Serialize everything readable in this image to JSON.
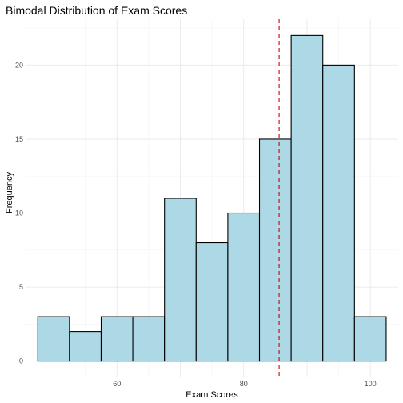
{
  "chart_data": {
    "type": "bar",
    "title": "Bimodal Distribution of Exam Scores",
    "xlabel": "Exam Scores",
    "ylabel": "Frequency",
    "bin_width": 5,
    "bins": [
      {
        "start": 47.5,
        "end": 52.5,
        "count": 3
      },
      {
        "start": 52.5,
        "end": 57.5,
        "count": 2
      },
      {
        "start": 57.5,
        "end": 62.5,
        "count": 3
      },
      {
        "start": 62.5,
        "end": 67.5,
        "count": 3
      },
      {
        "start": 67.5,
        "end": 72.5,
        "count": 11
      },
      {
        "start": 72.5,
        "end": 77.5,
        "count": 8
      },
      {
        "start": 77.5,
        "end": 82.5,
        "count": 10
      },
      {
        "start": 82.5,
        "end": 87.5,
        "count": 15
      },
      {
        "start": 87.5,
        "end": 92.5,
        "count": 22
      },
      {
        "start": 92.5,
        "end": 97.5,
        "count": 20
      },
      {
        "start": 97.5,
        "end": 102.5,
        "count": 3
      }
    ],
    "reference_line_x": 85.6,
    "xlim": [
      45.7,
      104.4
    ],
    "ylim": [
      -1.1,
      23.1
    ],
    "x_ticks": [
      60,
      70,
      80,
      90,
      100
    ],
    "x_tick_labels": [
      "60",
      "",
      "80",
      "",
      "100"
    ],
    "y_ticks": [
      0,
      5,
      10,
      15,
      20
    ],
    "y_tick_labels": [
      "0",
      "5",
      "10",
      "15",
      "20"
    ],
    "grid": true,
    "legend": "none",
    "colors": {
      "bar_fill": "#add8e6",
      "bar_stroke": "#000000",
      "reference_line": "#cc0000",
      "grid_major": "#ebebeb",
      "grid_minor": "#f4f4f4"
    }
  }
}
